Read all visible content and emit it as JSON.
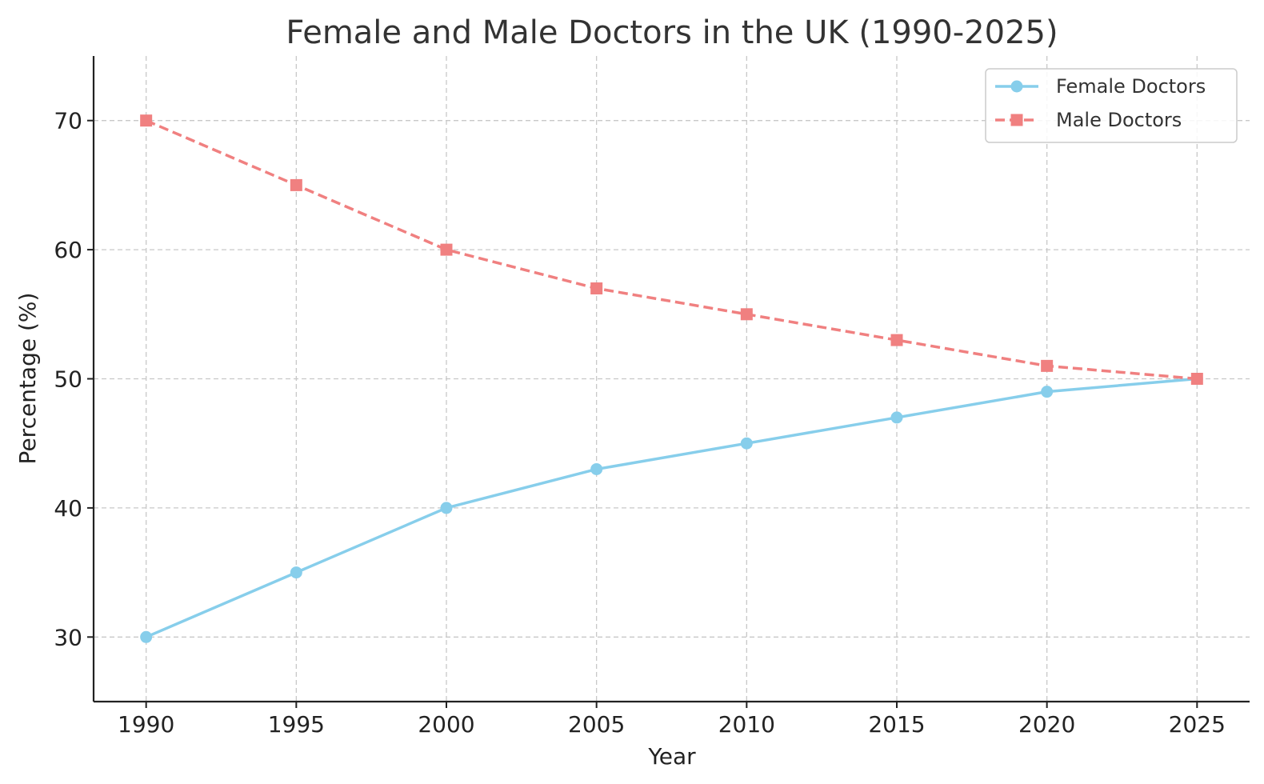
{
  "chart_data": {
    "type": "line",
    "title": "Female and Male Doctors in the UK (1990-2025)",
    "xlabel": "Year",
    "ylabel": "Percentage (%)",
    "x": [
      1990,
      1995,
      2000,
      2005,
      2010,
      2015,
      2020,
      2025
    ],
    "xticks": [
      "1990",
      "1995",
      "2000",
      "2005",
      "2010",
      "2015",
      "2020",
      "2025"
    ],
    "yticks": [
      30,
      40,
      50,
      60,
      70
    ],
    "ylim": [
      25,
      75
    ],
    "xlim": [
      1988.25,
      2026.75
    ],
    "grid": true,
    "legend_position": "top-right",
    "series": [
      {
        "name": "Female Doctors",
        "values": [
          30,
          35,
          40,
          43,
          45,
          47,
          49,
          50
        ],
        "color": "#87CEEB",
        "line_style": "solid",
        "marker": "circle"
      },
      {
        "name": "Male Doctors",
        "values": [
          70,
          65,
          60,
          57,
          55,
          53,
          51,
          50
        ],
        "color": "#F08080",
        "line_style": "dashed",
        "marker": "square"
      }
    ]
  }
}
